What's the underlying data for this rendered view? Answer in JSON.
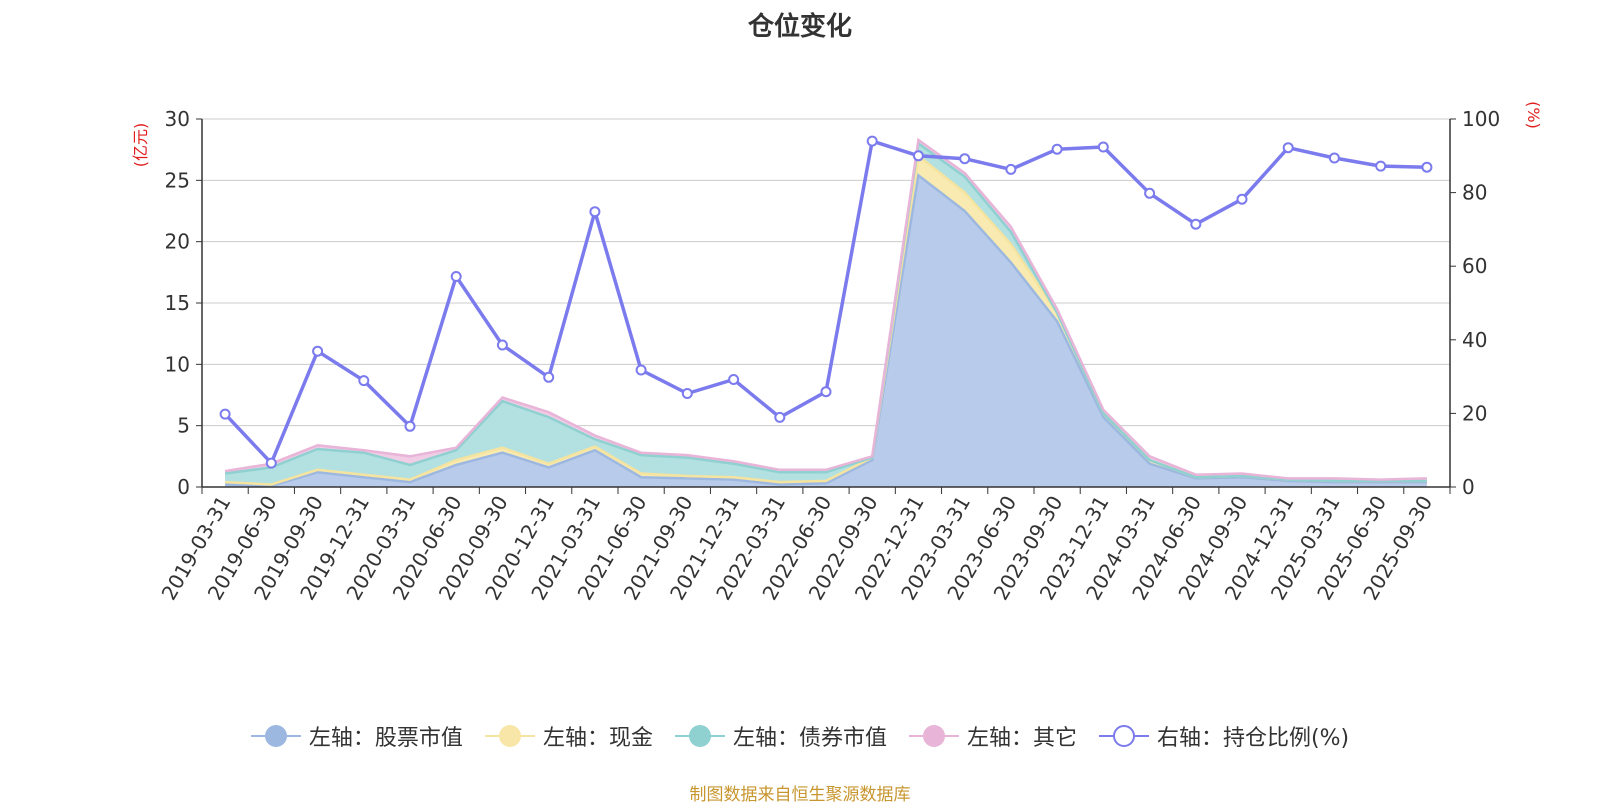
{
  "chart_data": {
    "type": "area",
    "title": "仓位变化",
    "source_note": "制图数据来自恒生聚源数据库",
    "left_axis": {
      "unit": "(亿元)",
      "ylim": [
        0,
        30
      ],
      "ticks": [
        0,
        5,
        10,
        15,
        20,
        25,
        30
      ]
    },
    "right_axis": {
      "unit": "(%)",
      "ylim": [
        0,
        100
      ],
      "ticks": [
        0,
        20,
        40,
        60,
        80,
        100
      ]
    },
    "categories": [
      "2019-03-31",
      "2019-06-30",
      "2019-09-30",
      "2019-12-31",
      "2020-03-31",
      "2020-06-30",
      "2020-09-30",
      "2020-12-31",
      "2021-03-31",
      "2021-06-30",
      "2021-09-30",
      "2021-12-31",
      "2022-03-31",
      "2022-06-30",
      "2022-09-30",
      "2022-12-31",
      "2023-03-31",
      "2023-06-30",
      "2023-09-30",
      "2023-12-31",
      "2024-03-31",
      "2024-06-30",
      "2024-09-30",
      "2024-12-31",
      "2025-03-31",
      "2025-06-30",
      "2025-09-30"
    ],
    "stacked_series": [
      {
        "name": "左轴：股票市值",
        "color": "#9db8e0",
        "fill": "#b8cbea",
        "values": [
          0.2,
          0.1,
          1.2,
          0.8,
          0.4,
          1.8,
          2.8,
          1.6,
          3.0,
          0.8,
          0.7,
          0.6,
          0.2,
          0.3,
          2.2,
          25.4,
          22.5,
          18.3,
          13.5,
          5.7,
          1.9,
          0.7,
          0.8,
          0.5,
          0.4,
          0.4,
          0.4
        ]
      },
      {
        "name": "左轴：现金",
        "color": "#f5e3a0",
        "fill": "#f8eab0",
        "values": [
          0.2,
          0.1,
          0.2,
          0.2,
          0.2,
          0.4,
          0.4,
          0.3,
          0.3,
          0.3,
          0.2,
          0.2,
          0.2,
          0.2,
          0.2,
          1.6,
          1.5,
          1.5,
          0.7,
          0.3,
          0.3,
          0.1,
          0.1,
          0.1,
          0.1,
          0.1,
          0.1
        ]
      },
      {
        "name": "左轴：债券市值",
        "color": "#8fd0d0",
        "fill": "#b3e0e0",
        "values": [
          0.7,
          1.4,
          1.7,
          1.8,
          1.2,
          0.8,
          3.8,
          3.8,
          0.6,
          1.5,
          1.5,
          1.1,
          0.8,
          0.7,
          0.0,
          1.0,
          1.3,
          1.0,
          0.0,
          0.0,
          0.0,
          0.0,
          0.0,
          0.0,
          0.0,
          0.0,
          0.0
        ]
      },
      {
        "name": "左轴：其它",
        "color": "#e8b4d8",
        "fill": "#f0cde5",
        "values": [
          0.2,
          0.3,
          0.3,
          0.2,
          0.7,
          0.2,
          0.3,
          0.4,
          0.3,
          0.2,
          0.2,
          0.2,
          0.2,
          0.2,
          0.1,
          0.3,
          0.3,
          0.4,
          0.3,
          0.3,
          0.3,
          0.2,
          0.2,
          0.1,
          0.2,
          0.1,
          0.2
        ]
      }
    ],
    "line_series": {
      "name": "右轴：持仓比例(%)",
      "color": "#7b7bee",
      "values": [
        19.8,
        6.5,
        36.9,
        28.9,
        16.5,
        57.2,
        38.6,
        29.8,
        74.8,
        31.8,
        25.4,
        29.2,
        18.9,
        25.9,
        94.0,
        90.0,
        89.2,
        86.3,
        91.8,
        92.4,
        79.8,
        71.4,
        78.2,
        92.2,
        89.4,
        87.2,
        86.9
      ]
    }
  },
  "legend": [
    {
      "label": "左轴：股票市值",
      "line_color": "#9db8e0",
      "dot_color": "#9db8e0",
      "hollow": false
    },
    {
      "label": "左轴：现金",
      "line_color": "#f5e3a0",
      "dot_color": "#f8e6a8",
      "hollow": false
    },
    {
      "label": "左轴：债券市值",
      "line_color": "#8fd0d0",
      "dot_color": "#8fd0d0",
      "hollow": false
    },
    {
      "label": "左轴：其它",
      "line_color": "#e8b4d8",
      "dot_color": "#e8b4d8",
      "hollow": false
    },
    {
      "label": "右轴：持仓比例(%)",
      "line_color": "#7b7bee",
      "dot_color": "#7b7bee",
      "hollow": true
    }
  ]
}
